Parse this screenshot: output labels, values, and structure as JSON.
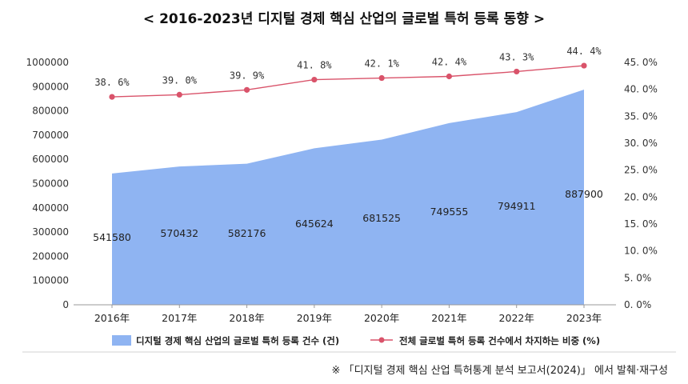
{
  "chart_data": {
    "type": "area+line",
    "title": "< 2016-2023년 디지털 경제 핵심 산업의 글로벌 특허 등록 동향 >",
    "categories": [
      "2016年",
      "2017年",
      "2018年",
      "2019年",
      "2020年",
      "2021年",
      "2022年",
      "2023年"
    ],
    "series": [
      {
        "name": "디지털 경제 핵심 산업의 글로벌 특허 등록 건수 (건)",
        "type": "area",
        "axis": "left",
        "color": "#8fb4f2",
        "values": [
          541580,
          570432,
          582176,
          645624,
          681525,
          749555,
          794911,
          887900
        ],
        "labels": [
          "541580",
          "570432",
          "582176",
          "645624",
          "681525",
          "749555",
          "794911",
          "887900"
        ]
      },
      {
        "name": "전체 글로벌 특허 등록 건수에서 차지하는 비중 (%)",
        "type": "line",
        "axis": "right",
        "color": "#d9536a",
        "values": [
          38.6,
          39.0,
          39.9,
          41.8,
          42.1,
          42.4,
          43.3,
          44.4
        ],
        "labels": [
          "38. 6%",
          "39. 0%",
          "39. 9%",
          "41. 8%",
          "42. 1%",
          "42. 4%",
          "43. 3%",
          "44. 4%"
        ]
      }
    ],
    "y_left": {
      "range": [
        0,
        1000000
      ],
      "ticks": [
        0,
        100000,
        200000,
        300000,
        400000,
        500000,
        600000,
        700000,
        800000,
        900000,
        1000000
      ],
      "tick_labels": [
        "0",
        "100000",
        "200000",
        "300000",
        "400000",
        "500000",
        "600000",
        "700000",
        "800000",
        "900000",
        "1000000"
      ]
    },
    "y_right": {
      "range": [
        0,
        45
      ],
      "ticks": [
        0,
        5,
        10,
        15,
        20,
        25,
        30,
        35,
        40,
        45
      ],
      "tick_labels": [
        "0. 0%",
        "5. 0%",
        "10. 0%",
        "15. 0%",
        "20. 0%",
        "25. 0%",
        "30. 0%",
        "35. 0%",
        "40. 0%",
        "45. 0%"
      ]
    },
    "grid": false,
    "legend_position": "bottom"
  },
  "source_note": "※  「디지털 경제 핵심 산업 특허통계 분석 보고서(2024)」 에서 발췌·재구성"
}
